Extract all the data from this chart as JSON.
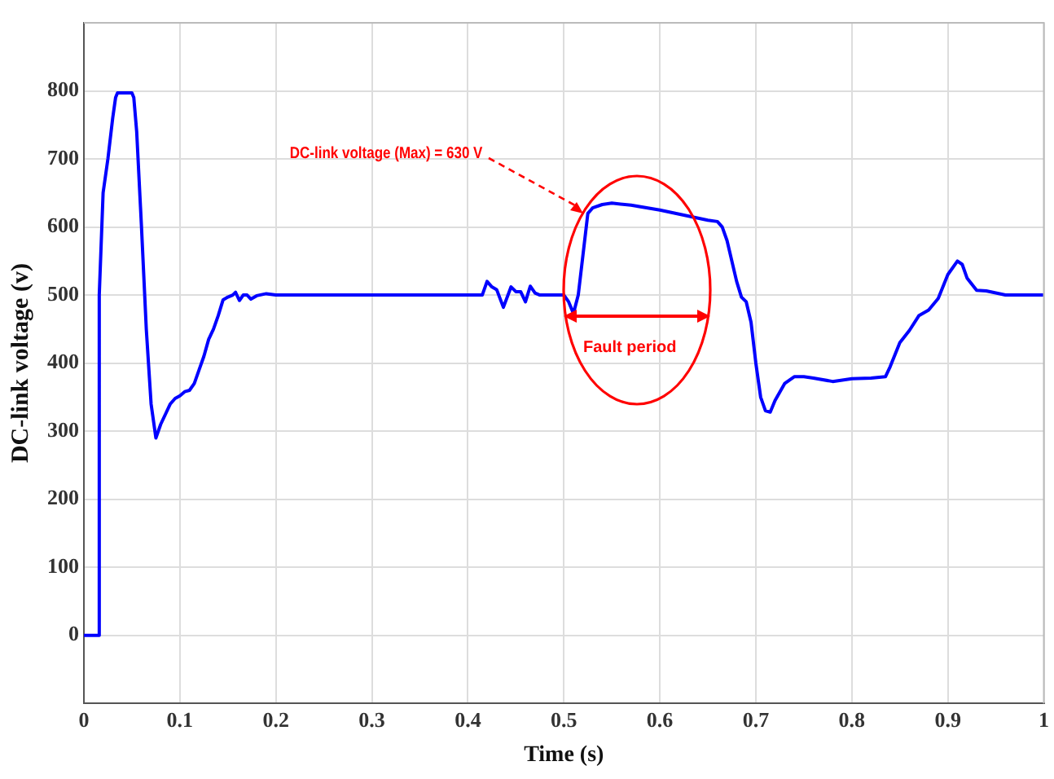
{
  "chart_data": {
    "type": "line",
    "xlabel": "Time (s)",
    "ylabel": "DC-link voltage (v)",
    "x": [
      0,
      0.015,
      0.016,
      0.02,
      0.025,
      0.03,
      0.033,
      0.035,
      0.05,
      0.052,
      0.055,
      0.06,
      0.065,
      0.07,
      0.075,
      0.08,
      0.085,
      0.09,
      0.095,
      0.1,
      0.105,
      0.11,
      0.115,
      0.12,
      0.125,
      0.13,
      0.135,
      0.14,
      0.145,
      0.15,
      0.155,
      0.158,
      0.162,
      0.166,
      0.17,
      0.174,
      0.18,
      0.19,
      0.2,
      0.415,
      0.42,
      0.425,
      0.43,
      0.437,
      0.445,
      0.45,
      0.455,
      0.46,
      0.465,
      0.47,
      0.475,
      0.5,
      0.505,
      0.51,
      0.515,
      0.52,
      0.525,
      0.53,
      0.54,
      0.55,
      0.57,
      0.6,
      0.63,
      0.65,
      0.66,
      0.665,
      0.67,
      0.68,
      0.685,
      0.69,
      0.695,
      0.7,
      0.705,
      0.71,
      0.715,
      0.72,
      0.73,
      0.74,
      0.75,
      0.76,
      0.78,
      0.8,
      0.82,
      0.835,
      0.84,
      0.85,
      0.86,
      0.87,
      0.88,
      0.89,
      0.9,
      0.91,
      0.915,
      0.92,
      0.93,
      0.94,
      0.96,
      1.0
    ],
    "series": [
      {
        "color": "#0000ff",
        "values": [
          0,
          0,
          500,
          650,
          700,
          760,
          790,
          797,
          797,
          790,
          740,
          600,
          450,
          340,
          290,
          310,
          325,
          340,
          348,
          352,
          358,
          360,
          370,
          390,
          410,
          435,
          450,
          470,
          493,
          497,
          500,
          504,
          492,
          500,
          500,
          494,
          499,
          502,
          500,
          500,
          520,
          512,
          508,
          482,
          512,
          505,
          505,
          490,
          513,
          503,
          500,
          500,
          490,
          473,
          500,
          560,
          620,
          628,
          633,
          635,
          632,
          625,
          616,
          610,
          608,
          600,
          580,
          520,
          497,
          490,
          460,
          400,
          350,
          330,
          328,
          345,
          370,
          380,
          380,
          378,
          373,
          377,
          378,
          380,
          395,
          430,
          448,
          470,
          478,
          495,
          530,
          550,
          545,
          525,
          507,
          506,
          500,
          500
        ]
      }
    ],
    "xlim": [
      0,
      1
    ],
    "xticks": [
      0,
      0.1,
      0.2,
      0.3,
      0.4,
      0.5,
      0.6,
      0.7,
      0.8,
      0.9,
      1
    ],
    "ylim": [
      -100,
      900
    ],
    "yticks": [
      0,
      100,
      200,
      300,
      400,
      500,
      600,
      700,
      800
    ],
    "grid": true,
    "legend": false,
    "marker": "none",
    "line_style": "solid",
    "annotations": [
      {
        "text": "DC-link voltage (Max) = 630 V",
        "x": 0.52,
        "y": 620
      },
      "Fault period"
    ]
  }
}
